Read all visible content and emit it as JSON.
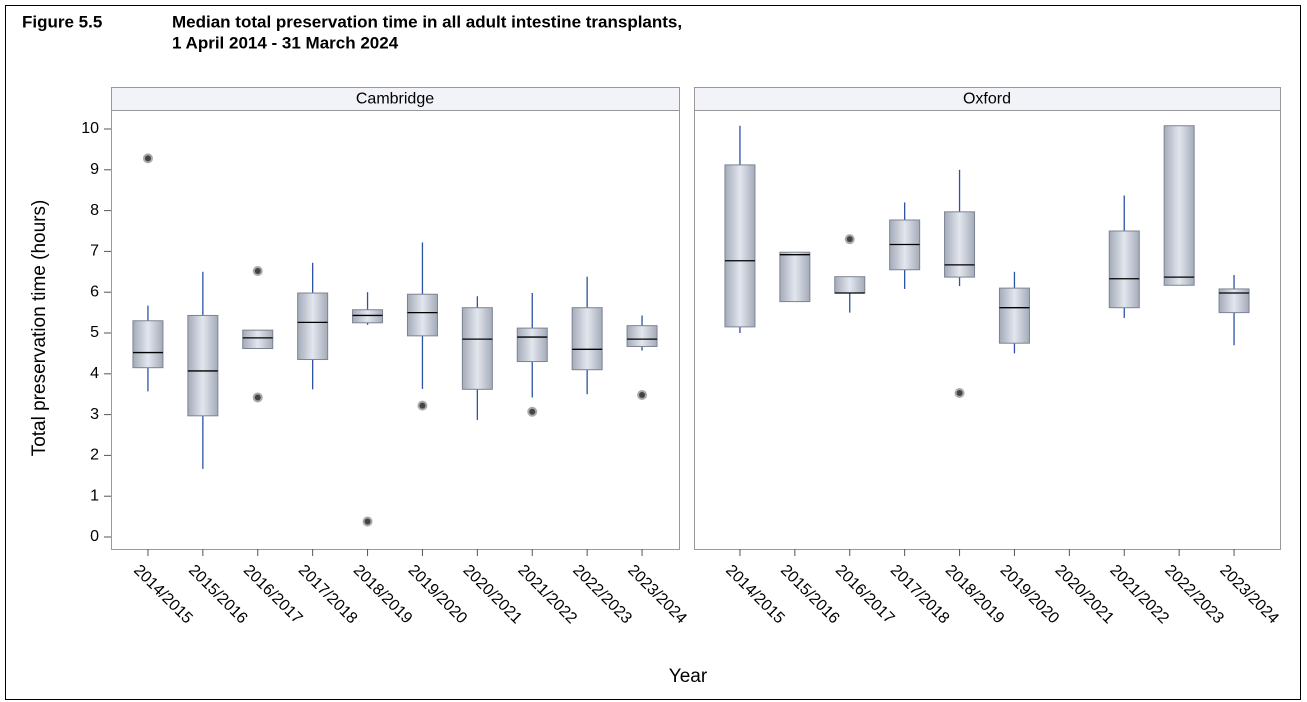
{
  "chart_data": {
    "type": "box",
    "figure_label": "Figure 5.5",
    "title": "Median total preservation time in all adult intestine transplants,",
    "subtitle": "1 April 2014 - 31 March 2024",
    "y_label": "Total preservation time (hours)",
    "x_label": "Year",
    "ylim": [
      0,
      10
    ],
    "yticks": [
      0,
      1,
      2,
      3,
      4,
      5,
      6,
      7,
      8,
      9,
      10
    ],
    "categories": [
      "2014/2015",
      "2015/2016",
      "2016/2017",
      "2017/2018",
      "2018/2019",
      "2019/2020",
      "2020/2021",
      "2021/2022",
      "2022/2023",
      "2023/2024"
    ],
    "panels": [
      {
        "name": "Cambridge",
        "min": [
          3.57,
          1.67,
          4.62,
          3.62,
          5.2,
          3.63,
          2.87,
          3.42,
          3.5,
          4.57
        ],
        "q1": [
          4.15,
          2.97,
          4.62,
          4.35,
          5.25,
          4.93,
          3.62,
          4.3,
          4.1,
          4.67
        ],
        "median": [
          4.52,
          4.07,
          4.88,
          5.26,
          5.43,
          5.5,
          4.85,
          4.9,
          4.6,
          4.85
        ],
        "q3": [
          5.3,
          5.43,
          5.07,
          5.98,
          5.57,
          5.95,
          5.62,
          5.12,
          5.62,
          5.18
        ],
        "max": [
          5.67,
          6.5,
          5.07,
          6.72,
          6.0,
          7.22,
          5.9,
          5.98,
          6.38,
          5.43
        ],
        "outliers": [
          [
            9.28
          ],
          [],
          [
            6.52,
            3.42
          ],
          [],
          [
            0.38
          ],
          [
            3.22
          ],
          [],
          [
            3.07
          ],
          [],
          [
            3.48
          ]
        ]
      },
      {
        "name": "Oxford",
        "min": [
          5.0,
          5.77,
          5.5,
          6.08,
          6.15,
          4.5,
          null,
          5.37,
          6.17,
          4.7
        ],
        "q1": [
          5.15,
          5.77,
          5.98,
          6.55,
          6.37,
          4.75,
          null,
          5.62,
          6.17,
          5.5
        ],
        "median": [
          6.77,
          6.92,
          5.98,
          7.17,
          6.67,
          5.62,
          null,
          6.33,
          6.37,
          5.98
        ],
        "q3": [
          9.12,
          6.98,
          6.38,
          7.77,
          7.97,
          6.1,
          null,
          7.5,
          10.08,
          6.08
        ],
        "max": [
          10.08,
          6.98,
          6.38,
          8.2,
          9.0,
          6.5,
          null,
          8.37,
          10.08,
          6.42
        ],
        "outliers": [
          [],
          [],
          [
            7.3
          ],
          [],
          [
            3.53
          ],
          [],
          [],
          [],
          [],
          []
        ]
      }
    ]
  }
}
